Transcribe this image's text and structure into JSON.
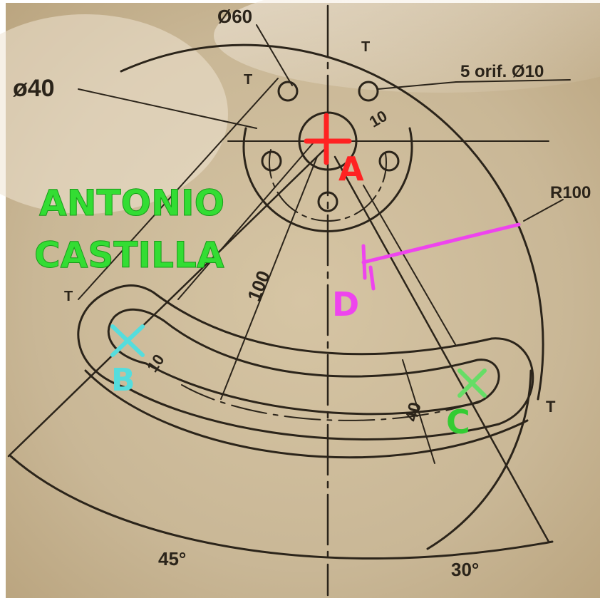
{
  "drawing": {
    "annotation": {
      "line1": "ANTONIO",
      "line2": "CASTILLA",
      "color": "#33dd33"
    },
    "dimensions": {
      "dia60": "Ø60",
      "dia40": "ø40",
      "holes": "5 orif. Ø10",
      "ten_top": "10",
      "r100": "R100",
      "hundred": "100",
      "ten_left": "10",
      "forty": "40",
      "angle45": "45°",
      "angle30": "30°",
      "t": "T"
    },
    "points": {
      "a": {
        "label": "A",
        "color": "#ff2222"
      },
      "b": {
        "label": "B",
        "color": "#55dddd"
      },
      "c": {
        "label": "C",
        "color": "#33cc33"
      },
      "d": {
        "label": "D",
        "color": "#ee44ee"
      }
    },
    "paper_color": "#c9b796",
    "ink_color": "#2b241a"
  }
}
